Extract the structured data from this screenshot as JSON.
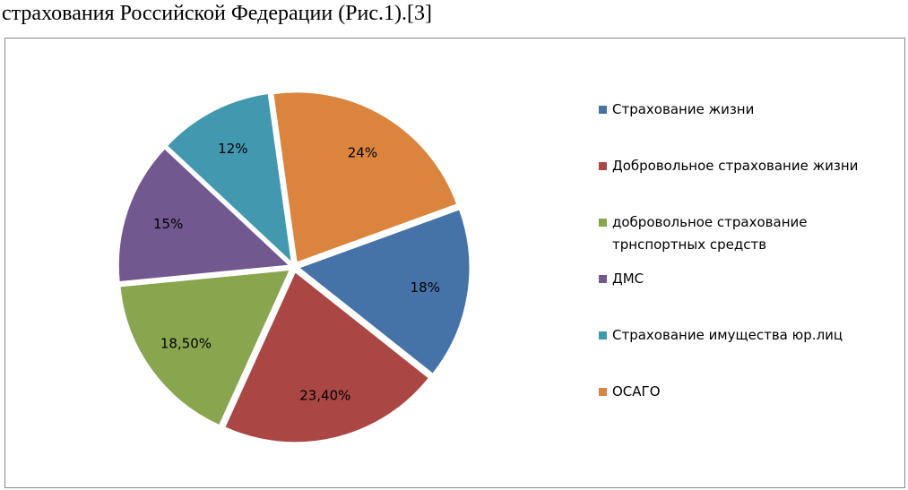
{
  "header_text": "страхования Российской Федерации (Рис.1).[3]",
  "chart_data": {
    "type": "pie",
    "categories": [
      "Страхование жизни",
      "Добровольное страхование жизни",
      "добровольное страхование трнспортных средств",
      "ДМС",
      "Страхование имущества юр.лиц",
      "ОСАГО"
    ],
    "values": [
      18,
      23.4,
      18.5,
      15,
      12,
      24
    ],
    "value_labels": [
      "18%",
      "23,40%",
      "18,50%",
      "15%",
      "12%",
      "24%"
    ],
    "colors": [
      "#4572a7",
      "#aa4643",
      "#89a54e",
      "#71588f",
      "#4198af",
      "#db843d"
    ],
    "legend": "right"
  }
}
